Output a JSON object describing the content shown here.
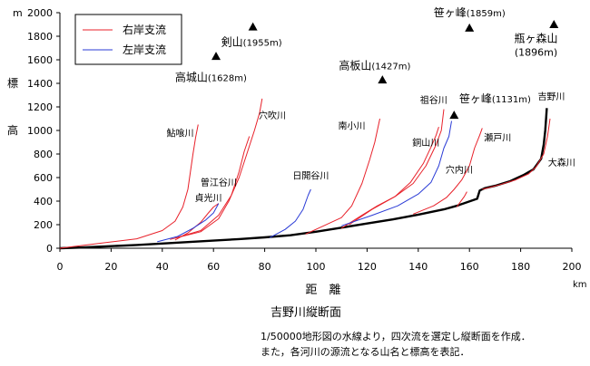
{
  "chart_data": {
    "type": "line",
    "title": "吉野川縦断面",
    "xlabel": "距　離",
    "ylabel": "標　高",
    "x_unit": "km",
    "y_unit": "m",
    "xlim": [
      0,
      200
    ],
    "ylim": [
      0,
      2000
    ],
    "xticks": [
      0,
      20,
      40,
      60,
      80,
      100,
      120,
      140,
      160,
      180,
      200
    ],
    "yticks": [
      0,
      200,
      400,
      600,
      800,
      1000,
      1200,
      1400,
      1600,
      1800,
      2000
    ],
    "grid": false,
    "legend": {
      "placement": "top-left",
      "items": [
        {
          "label": "右岸支流",
          "color": "#e8212a"
        },
        {
          "label": "左岸支流",
          "color": "#2a3bd6"
        }
      ]
    },
    "series": [
      {
        "name": "吉野川",
        "color": "#000000",
        "role": "main",
        "points": [
          [
            0,
            0
          ],
          [
            10,
            8
          ],
          [
            20,
            18
          ],
          [
            30,
            28
          ],
          [
            40,
            40
          ],
          [
            50,
            52
          ],
          [
            60,
            65
          ],
          [
            70,
            78
          ],
          [
            80,
            92
          ],
          [
            90,
            110
          ],
          [
            100,
            140
          ],
          [
            110,
            175
          ],
          [
            120,
            210
          ],
          [
            130,
            245
          ],
          [
            140,
            285
          ],
          [
            150,
            330
          ],
          [
            155,
            360
          ],
          [
            163,
            420
          ],
          [
            164,
            490
          ],
          [
            166,
            510
          ],
          [
            170,
            530
          ],
          [
            176,
            570
          ],
          [
            181,
            620
          ],
          [
            185,
            670
          ],
          [
            188,
            760
          ],
          [
            189,
            880
          ],
          [
            189.6,
            1000
          ],
          [
            190,
            1120
          ],
          [
            190.2,
            1190
          ]
        ]
      },
      {
        "name": "鮎喰川",
        "color": "#e8212a",
        "role": "right",
        "points": [
          [
            0,
            0
          ],
          [
            15,
            40
          ],
          [
            30,
            80
          ],
          [
            40,
            150
          ],
          [
            45,
            230
          ],
          [
            48,
            350
          ],
          [
            50,
            500
          ],
          [
            51,
            650
          ],
          [
            52,
            800
          ],
          [
            53,
            940
          ],
          [
            54,
            1050
          ]
        ]
      },
      {
        "name": "穴吹川",
        "color": "#e8212a",
        "role": "right",
        "points": [
          [
            43,
            75
          ],
          [
            55,
            140
          ],
          [
            62,
            250
          ],
          [
            66,
            400
          ],
          [
            70,
            600
          ],
          [
            73,
            800
          ],
          [
            76,
            1000
          ],
          [
            78,
            1150
          ],
          [
            79,
            1270
          ]
        ]
      },
      {
        "name": "穴吹川支流",
        "color": "#e8212a",
        "role": "right",
        "points": [
          [
            45,
            85
          ],
          [
            55,
            150
          ],
          [
            62,
            280
          ],
          [
            67,
            450
          ],
          [
            70,
            650
          ],
          [
            72,
            820
          ],
          [
            74,
            950
          ]
        ]
      },
      {
        "name": "曽江谷川",
        "color": "#e8212a",
        "role": "right",
        "points": [
          [
            45,
            70
          ],
          [
            50,
            130
          ],
          [
            55,
            220
          ],
          [
            58,
            300
          ],
          [
            60,
            350
          ],
          [
            62,
            380
          ]
        ]
      },
      {
        "name": "南小川",
        "color": "#e8212a",
        "role": "right",
        "points": [
          [
            96,
            120
          ],
          [
            103,
            190
          ],
          [
            110,
            260
          ],
          [
            114,
            360
          ],
          [
            118,
            550
          ],
          [
            121,
            750
          ],
          [
            123,
            900
          ],
          [
            124,
            1000
          ],
          [
            125,
            1100
          ]
        ]
      },
      {
        "name": "祖谷川",
        "color": "#e8212a",
        "role": "right",
        "points": [
          [
            110,
            170
          ],
          [
            118,
            280
          ],
          [
            124,
            360
          ],
          [
            131,
            440
          ],
          [
            137,
            560
          ],
          [
            142,
            720
          ],
          [
            145,
            860
          ],
          [
            147,
            960
          ],
          [
            148,
            1030
          ]
        ]
      },
      {
        "name": "祖谷川支流",
        "color": "#e8212a",
        "role": "right",
        "points": [
          [
            113,
            200
          ],
          [
            122,
            330
          ],
          [
            131,
            440
          ],
          [
            138,
            550
          ],
          [
            143,
            700
          ],
          [
            147,
            880
          ],
          [
            149,
            1000
          ],
          [
            150,
            1180
          ]
        ]
      },
      {
        "name": "穴内川",
        "color": "#e8212a",
        "role": "right",
        "points": [
          [
            138,
            290
          ],
          [
            146,
            360
          ],
          [
            151,
            430
          ],
          [
            154,
            500
          ],
          [
            157,
            580
          ],
          [
            160,
            700
          ],
          [
            162,
            850
          ],
          [
            164,
            960
          ],
          [
            165,
            1020
          ]
        ]
      },
      {
        "name": "瀬戸川",
        "color": "#e8212a",
        "role": "right",
        "points": [
          [
            155,
            350
          ],
          [
            158,
            440
          ],
          [
            159,
            480
          ]
        ]
      },
      {
        "name": "大森川",
        "color": "#e8212a",
        "role": "right",
        "points": [
          [
            165,
            500
          ],
          [
            172,
            540
          ],
          [
            178,
            580
          ],
          [
            183,
            630
          ],
          [
            186,
            690
          ],
          [
            189,
            800
          ],
          [
            190.5,
            950
          ],
          [
            191.5,
            1100
          ]
        ]
      },
      {
        "name": "貞光川",
        "color": "#2a3bd6",
        "role": "left",
        "points": [
          [
            38,
            55
          ],
          [
            46,
            100
          ],
          [
            52,
            170
          ],
          [
            57,
            240
          ],
          [
            60,
            300
          ],
          [
            62,
            380
          ]
        ]
      },
      {
        "name": "日開谷川",
        "color": "#2a3bd6",
        "role": "left",
        "points": [
          [
            82,
            90
          ],
          [
            88,
            160
          ],
          [
            92,
            230
          ],
          [
            95,
            330
          ],
          [
            97,
            450
          ],
          [
            98,
            500
          ]
        ]
      },
      {
        "name": "銅山川",
        "color": "#2a3bd6",
        "role": "left",
        "points": [
          [
            110,
            190
          ],
          [
            122,
            280
          ],
          [
            132,
            360
          ],
          [
            140,
            460
          ],
          [
            145,
            560
          ],
          [
            148,
            700
          ],
          [
            150,
            850
          ],
          [
            152,
            950
          ],
          [
            153,
            1080
          ]
        ]
      }
    ],
    "river_labels": [
      {
        "text": "鮎喰川",
        "x": 47,
        "y": 950
      },
      {
        "text": "穴吹川",
        "x": 83,
        "y": 1100
      },
      {
        "text": "曽江谷川",
        "x": 62,
        "y": 530
      },
      {
        "text": "貞光川",
        "x": 58,
        "y": 400
      },
      {
        "text": "日開谷川",
        "x": 98,
        "y": 590
      },
      {
        "text": "南小川",
        "x": 114,
        "y": 1010
      },
      {
        "text": "祖谷川",
        "x": 146,
        "y": 1230
      },
      {
        "text": "銅山川",
        "x": 143,
        "y": 870
      },
      {
        "text": "穴内川",
        "x": 156,
        "y": 640
      },
      {
        "text": "瀬戸川",
        "x": 171,
        "y": 910
      },
      {
        "text": "大森川",
        "x": 196,
        "y": 700
      },
      {
        "text": "吉野川",
        "x": 192,
        "y": 1260
      }
    ],
    "peaks": [
      {
        "name": "剣山",
        "elevation": "1955m",
        "x": 75.4,
        "y": 1880,
        "label_x": 63,
        "label_y": 1720,
        "anchor": "start"
      },
      {
        "name": "高城山",
        "elevation": "1628m",
        "x": 61,
        "y": 1630,
        "label_x": 45,
        "label_y": 1420,
        "anchor": "start"
      },
      {
        "name": "高板山",
        "elevation": "1427m",
        "x": 126,
        "y": 1430,
        "label_x": 109,
        "label_y": 1520,
        "anchor": "start"
      },
      {
        "name": "笹ヶ峰",
        "elevation": "1859m",
        "x": 160,
        "y": 1870,
        "label_x": 146,
        "label_y": 1970,
        "anchor": "start"
      },
      {
        "name": "瓶ヶ森山",
        "elevation": "1896m",
        "x": 193,
        "y": 1900,
        "label_x": 186,
        "label_y": 1750,
        "anchor": "middle",
        "elevation_line": true
      },
      {
        "name": "笹ヶ峰",
        "elevation": "1131m",
        "x": 154,
        "y": 1130,
        "label_x": 156,
        "label_y": 1240,
        "anchor": "start"
      }
    ]
  },
  "caption": {
    "line1": "1/50000地形図の水線より，四次流を選定し縦断面を作成．",
    "line2": "また，各河川の源流となる山名と標高を表記．"
  }
}
